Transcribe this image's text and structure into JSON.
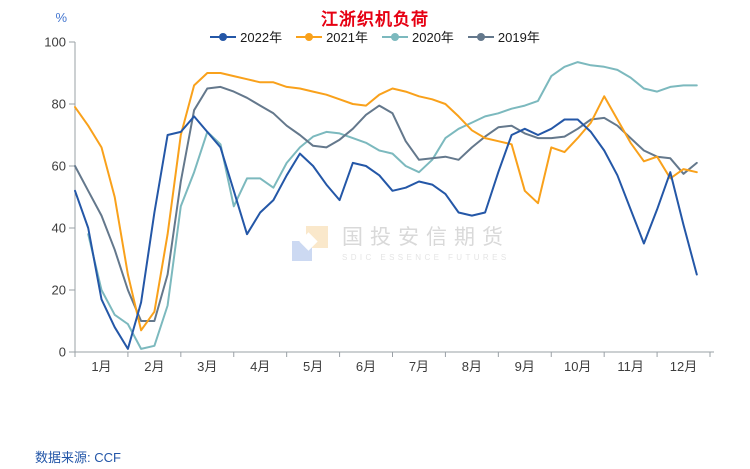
{
  "header": {
    "title": "江浙织机负荷"
  },
  "footer": {
    "source_text": "数据来源: CCF"
  },
  "watermark": {
    "name_cn": "国投安信期货",
    "name_en": "SDIC ESSENCE FUTURES"
  },
  "chart_data": {
    "type": "line",
    "title": "江浙织机负荷",
    "ylabel": "%",
    "ylabel_color": "#4577d0",
    "ylim": [
      0,
      100
    ],
    "y_ticks": [
      0,
      20,
      40,
      60,
      80,
      100
    ],
    "x_tick_labels": [
      "1月",
      "2月",
      "3月",
      "4月",
      "5月",
      "6月",
      "7月",
      "8月",
      "9月",
      "10月",
      "11月",
      "12月"
    ],
    "points_per_month": 4,
    "grid": false,
    "legend_position": "top",
    "series": [
      {
        "name": "2020年",
        "color": "#7cb9be",
        "values": [
          null,
          38,
          20,
          12,
          9,
          1,
          2,
          15,
          47,
          58,
          71,
          67,
          47,
          56,
          56,
          53,
          61,
          66,
          69.5,
          71,
          70.5,
          69,
          67.5,
          65,
          64,
          60,
          58,
          62,
          69,
          72,
          74,
          76,
          77,
          78.5,
          79.5,
          81,
          89,
          92,
          93.5,
          92.5,
          92,
          91,
          88.5,
          85,
          84,
          85.5,
          86,
          86
        ]
      },
      {
        "name": "2019年",
        "color": "#64788c",
        "values": [
          60,
          52,
          44,
          33,
          20,
          10,
          10,
          25,
          55,
          78,
          85,
          85.5,
          84,
          82,
          79.5,
          77,
          73,
          70,
          66.5,
          66,
          68.5,
          72,
          76.5,
          79.5,
          77,
          68,
          62,
          62.5,
          63,
          62,
          66,
          69.5,
          72.5,
          73,
          70.5,
          69,
          69,
          69.5,
          72,
          75,
          75.5,
          73,
          69,
          65,
          63,
          62.5,
          57.5,
          61
        ]
      },
      {
        "name": "2021年",
        "color": "#f9a11b",
        "values": [
          79,
          73,
          66,
          50,
          25,
          7,
          13,
          38,
          70,
          86,
          90,
          90,
          89,
          88,
          87,
          87,
          85.5,
          85,
          84,
          83,
          81.5,
          80,
          79.5,
          83,
          85,
          84,
          82.5,
          81.5,
          80,
          76,
          71.5,
          69,
          68,
          67,
          52,
          48,
          66,
          64.5,
          69,
          74,
          82.5,
          75,
          67.5,
          61.5,
          63,
          56,
          59,
          58
        ]
      },
      {
        "name": "2022年",
        "color": "#2457a7",
        "values": [
          52,
          40,
          17,
          8,
          1,
          16,
          45,
          70,
          71,
          76,
          71,
          66,
          52,
          38,
          45,
          49,
          57,
          64,
          60,
          54,
          49,
          61,
          60,
          57,
          52,
          53,
          55,
          54,
          51,
          45,
          44,
          45,
          58,
          70,
          72,
          70,
          72,
          75,
          75,
          71,
          65,
          57,
          46,
          35,
          46,
          58,
          41,
          25
        ]
      }
    ],
    "legend_order": [
      "2022年",
      "2021年",
      "2020年",
      "2019年"
    ]
  }
}
